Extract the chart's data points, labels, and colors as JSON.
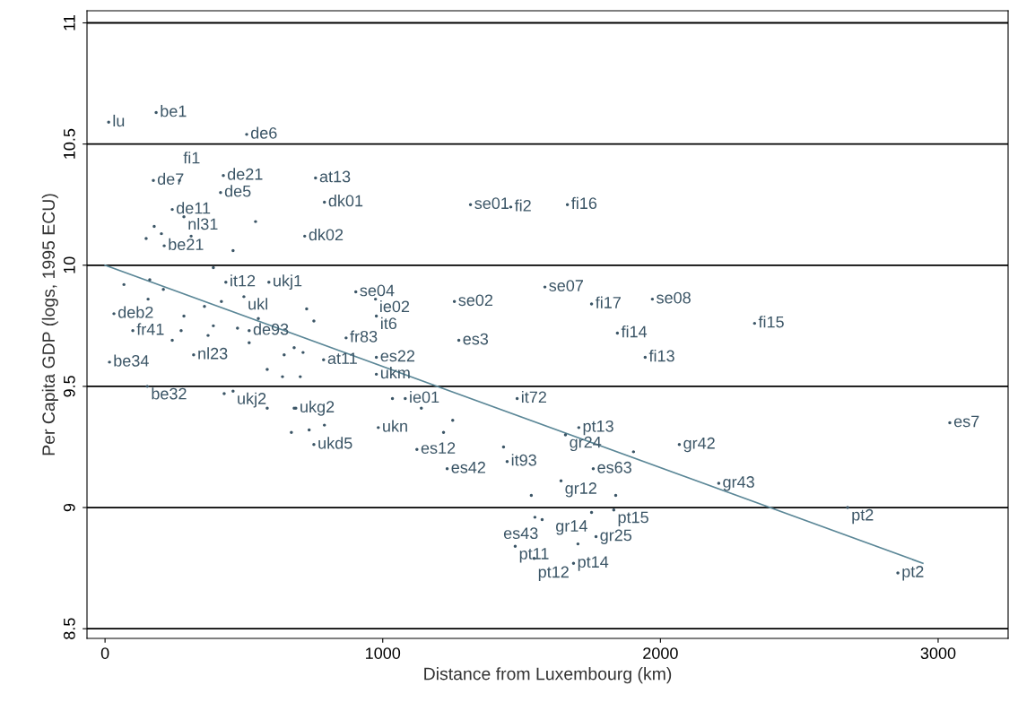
{
  "chart_data": {
    "type": "scatter",
    "xlabel": "Distance from Luxembourg (km)",
    "ylabel": "Per Capita GDP (logs, 1995 ECU)",
    "xlim": [
      -65,
      3252
    ],
    "ylim": [
      8.46,
      11.05
    ],
    "xticks": [
      0,
      1000,
      2000,
      3000
    ],
    "yticks": [
      8.5,
      9,
      9.5,
      10,
      10.5,
      11
    ],
    "grid": "y",
    "legend": false,
    "series": [
      {
        "marker": "circle",
        "color": "#3b5566",
        "x": [
          13,
          184,
          510,
          174,
          268,
          426,
          416,
          758,
          790,
          242,
          284,
          1316,
          1461,
          1665,
          719,
          213,
          435,
          590,
          500,
          903,
          974,
          977,
          1258,
          1584,
          1752,
          1971,
          2339,
          1845,
          1945,
          1274,
          868,
          787,
          977,
          977,
          32,
          100,
          519,
          319,
          16,
          152,
          461,
          687,
          752,
          1081,
          984,
          1123,
          1232,
          1448,
          1484,
          1706,
          1658,
          2068,
          1758,
          1642,
          2210,
          2674,
          2855,
          3042,
          1832,
          1752,
          1574,
          1768,
          1477,
          1545,
          1687,
          177,
          203,
          148,
          310,
          542,
          461,
          390,
          68,
          161,
          210,
          155,
          284,
          242,
          274,
          358,
          419,
          390,
          371,
          477,
          519,
          552,
          645,
          681,
          713,
          752,
          726,
          584,
          639,
          703,
          429,
          584,
          681,
          790,
          735,
          671,
          1035,
          1139,
          1252,
          1219,
          1435,
          1535,
          1548,
          1839,
          1703,
          1903
        ],
        "values": [
          10.59,
          10.63,
          10.54,
          10.35,
          10.35,
          10.37,
          10.3,
          10.36,
          10.26,
          10.23,
          10.2,
          10.25,
          10.24,
          10.25,
          10.12,
          10.08,
          9.93,
          9.93,
          9.87,
          9.89,
          9.86,
          9.79,
          9.85,
          9.91,
          9.84,
          9.86,
          9.76,
          9.72,
          9.62,
          9.69,
          9.7,
          9.61,
          9.62,
          9.55,
          9.8,
          9.73,
          9.73,
          9.63,
          9.6,
          9.5,
          9.48,
          9.41,
          9.26,
          9.45,
          9.33,
          9.24,
          9.16,
          9.19,
          9.45,
          9.33,
          9.3,
          9.26,
          9.16,
          9.11,
          9.1,
          9.0,
          8.73,
          9.35,
          8.99,
          8.98,
          8.95,
          8.88,
          8.84,
          8.79,
          8.77,
          10.16,
          10.13,
          10.11,
          10.12,
          10.18,
          10.06,
          9.99,
          9.92,
          9.94,
          9.9,
          9.86,
          9.79,
          9.69,
          9.73,
          9.83,
          9.85,
          9.75,
          9.71,
          9.74,
          9.68,
          9.78,
          9.63,
          9.66,
          9.64,
          9.77,
          9.82,
          9.57,
          9.54,
          9.54,
          9.47,
          9.41,
          9.41,
          9.34,
          9.32,
          9.31,
          9.45,
          9.41,
          9.36,
          9.31,
          9.25,
          9.05,
          8.96,
          9.05,
          8.85,
          9.23
        ]
      },
      {
        "type": "line",
        "marker": "none",
        "color": "#5b8797",
        "x": [
          0,
          2945
        ],
        "values": [
          10,
          8.77
        ]
      }
    ],
    "annotations": [
      {
        "text": "lu",
        "x": 13,
        "y": 10.59
      },
      {
        "text": "be1",
        "x": 184,
        "y": 10.63
      },
      {
        "text": "de6",
        "x": 510,
        "y": 10.54
      },
      {
        "text": "de7",
        "x": 174,
        "y": 10.35
      },
      {
        "text": "fi1",
        "x": 268,
        "y": 10.35
      },
      {
        "text": "de21",
        "x": 426,
        "y": 10.37
      },
      {
        "text": "de5",
        "x": 416,
        "y": 10.3
      },
      {
        "text": "at13",
        "x": 758,
        "y": 10.36
      },
      {
        "text": "dk01",
        "x": 790,
        "y": 10.26
      },
      {
        "text": "de11",
        "x": 242,
        "y": 10.23
      },
      {
        "text": "nl31",
        "x": 284,
        "y": 10.2
      },
      {
        "text": "se01",
        "x": 1316,
        "y": 10.25
      },
      {
        "text": "fi2",
        "x": 1461,
        "y": 10.24
      },
      {
        "text": "fi16",
        "x": 1665,
        "y": 10.25
      },
      {
        "text": "dk02",
        "x": 719,
        "y": 10.12
      },
      {
        "text": "be21",
        "x": 213,
        "y": 10.08
      },
      {
        "text": "it12",
        "x": 435,
        "y": 9.93
      },
      {
        "text": "ukj1",
        "x": 590,
        "y": 9.93
      },
      {
        "text": "ukl",
        "x": 500,
        "y": 9.87
      },
      {
        "text": "se04",
        "x": 903,
        "y": 9.89
      },
      {
        "text": "ie02",
        "x": 974,
        "y": 9.86
      },
      {
        "text": "it6",
        "x": 977,
        "y": 9.79
      },
      {
        "text": "se02",
        "x": 1258,
        "y": 9.85
      },
      {
        "text": "se07",
        "x": 1584,
        "y": 9.91
      },
      {
        "text": "fi17",
        "x": 1752,
        "y": 9.84
      },
      {
        "text": "se08",
        "x": 1971,
        "y": 9.86
      },
      {
        "text": "fi15",
        "x": 2339,
        "y": 9.76
      },
      {
        "text": "fi14",
        "x": 1845,
        "y": 9.72
      },
      {
        "text": "fi13",
        "x": 1945,
        "y": 9.62
      },
      {
        "text": "es3",
        "x": 1274,
        "y": 9.69
      },
      {
        "text": "fr83",
        "x": 868,
        "y": 9.7
      },
      {
        "text": "at11",
        "x": 787,
        "y": 9.61
      },
      {
        "text": "es22",
        "x": 977,
        "y": 9.62
      },
      {
        "text": "ukm",
        "x": 977,
        "y": 9.55
      },
      {
        "text": "deb2",
        "x": 32,
        "y": 9.8
      },
      {
        "text": "fr41",
        "x": 100,
        "y": 9.73
      },
      {
        "text": "de93",
        "x": 519,
        "y": 9.73
      },
      {
        "text": "nl23",
        "x": 319,
        "y": 9.63
      },
      {
        "text": "be34",
        "x": 16,
        "y": 9.6
      },
      {
        "text": "be32",
        "x": 152,
        "y": 9.5
      },
      {
        "text": "ukj2",
        "x": 461,
        "y": 9.48
      },
      {
        "text": "ukg2",
        "x": 687,
        "y": 9.41
      },
      {
        "text": "ukd5",
        "x": 752,
        "y": 9.26
      },
      {
        "text": "ie01",
        "x": 1081,
        "y": 9.45
      },
      {
        "text": "ukn",
        "x": 984,
        "y": 9.33
      },
      {
        "text": "es12",
        "x": 1123,
        "y": 9.24
      },
      {
        "text": "es42",
        "x": 1232,
        "y": 9.16
      },
      {
        "text": "it93",
        "x": 1448,
        "y": 9.19
      },
      {
        "text": "it72",
        "x": 1484,
        "y": 9.45
      },
      {
        "text": "pt13",
        "x": 1706,
        "y": 9.33
      },
      {
        "text": "gr24",
        "x": 1658,
        "y": 9.3
      },
      {
        "text": "gr42",
        "x": 2068,
        "y": 9.26
      },
      {
        "text": "es63",
        "x": 1758,
        "y": 9.16
      },
      {
        "text": "gr12",
        "x": 1642,
        "y": 9.11
      },
      {
        "text": "gr43",
        "x": 2210,
        "y": 9.1
      },
      {
        "text": "pt2",
        "x": 2674,
        "y": 9.0
      },
      {
        "text": "pt2",
        "x": 2855,
        "y": 8.73
      },
      {
        "text": "es7",
        "x": 3042,
        "y": 9.35
      },
      {
        "text": "pt15",
        "x": 1832,
        "y": 8.99
      },
      {
        "text": "gr14",
        "x": 1752,
        "y": 8.98
      },
      {
        "text": "es43",
        "x": 1574,
        "y": 8.95
      },
      {
        "text": "gr25",
        "x": 1768,
        "y": 8.88
      },
      {
        "text": "pt11",
        "x": 1477,
        "y": 8.84
      },
      {
        "text": "pt12",
        "x": 1545,
        "y": 8.79
      },
      {
        "text": "pt14",
        "x": 1687,
        "y": 8.77
      }
    ]
  }
}
